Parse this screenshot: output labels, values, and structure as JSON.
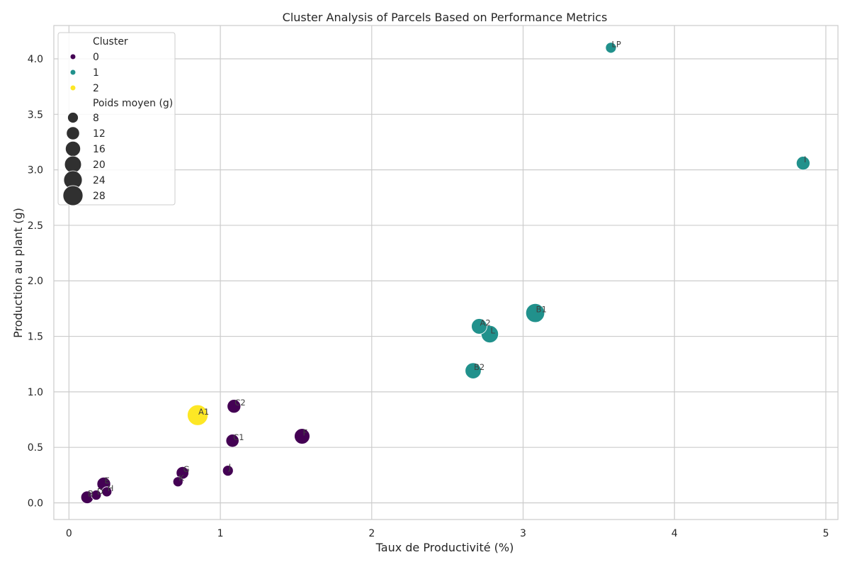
{
  "chart_data": {
    "type": "scatter",
    "title": "Cluster Analysis of Parcels Based on Performance Metrics",
    "xlabel": "Taux de Productivité (%)",
    "ylabel": "Production au plant (g)",
    "xlim": [
      -0.1,
      5.08
    ],
    "ylim": [
      -0.15,
      4.3
    ],
    "xticks": [
      0,
      1,
      2,
      3,
      4,
      5
    ],
    "yticks": [
      0.0,
      0.5,
      1.0,
      1.5,
      2.0,
      2.5,
      3.0,
      3.5,
      4.0
    ],
    "ytick_labels": [
      "0.0",
      "0.5",
      "1.0",
      "1.5",
      "2.0",
      "2.5",
      "3.0",
      "3.5",
      "4.0"
    ],
    "grid": true,
    "legend_position": "top-left",
    "legend": {
      "hue_title": "Cluster",
      "hue_items": [
        {
          "label": "0",
          "color": "#440154"
        },
        {
          "label": "1",
          "color": "#21918c"
        },
        {
          "label": "2",
          "color": "#fde725"
        }
      ],
      "size_title": "Poids moyen (g)",
      "size_items": [
        8,
        12,
        16,
        20,
        24,
        28
      ]
    },
    "points": [
      {
        "label": "LP",
        "x": 3.58,
        "y": 4.1,
        "size": 8,
        "cluster": 1
      },
      {
        "label": "I",
        "x": 4.85,
        "y": 3.06,
        "size": 13,
        "cluster": 1
      },
      {
        "label": "B1",
        "x": 3.08,
        "y": 1.71,
        "size": 25,
        "cluster": 1
      },
      {
        "label": "A2",
        "x": 2.71,
        "y": 1.59,
        "size": 17,
        "cluster": 1
      },
      {
        "label": "L",
        "x": 2.78,
        "y": 1.52,
        "size": 21,
        "cluster": 1
      },
      {
        "label": "B2",
        "x": 2.67,
        "y": 1.19,
        "size": 18,
        "cluster": 1
      },
      {
        "label": "A1",
        "x": 0.85,
        "y": 0.79,
        "size": 30,
        "cluster": 2
      },
      {
        "label": "C2",
        "x": 1.09,
        "y": 0.87,
        "size": 13,
        "cluster": 0
      },
      {
        "label": "C1",
        "x": 1.08,
        "y": 0.56,
        "size": 12,
        "cluster": 0
      },
      {
        "label": "F",
        "x": 1.54,
        "y": 0.6,
        "size": 17,
        "cluster": 0
      },
      {
        "label": "J",
        "x": 1.05,
        "y": 0.29,
        "size": 8,
        "cluster": 0
      },
      {
        "label": "G",
        "x": 0.75,
        "y": 0.27,
        "size": 11,
        "cluster": 0
      },
      {
        "label": "K",
        "x": 0.72,
        "y": 0.19,
        "size": 7,
        "cluster": 0
      },
      {
        "label": "E",
        "x": 0.23,
        "y": 0.17,
        "size": 13,
        "cluster": 0
      },
      {
        "label": "H",
        "x": 0.25,
        "y": 0.1,
        "size": 7,
        "cluster": 0
      },
      {
        "label": "D",
        "x": 0.18,
        "y": 0.07,
        "size": 7,
        "cluster": 0
      },
      {
        "label": "B",
        "x": 0.12,
        "y": 0.05,
        "size": 11,
        "cluster": 0
      }
    ]
  }
}
